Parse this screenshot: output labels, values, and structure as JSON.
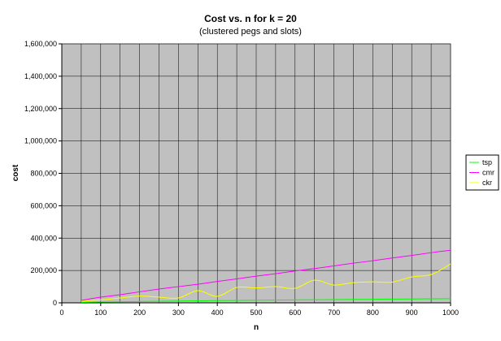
{
  "chart_data": {
    "type": "line",
    "title": "Cost vs. n for k = 20",
    "subtitle": "(clustered pegs and slots)",
    "xlabel": "n",
    "ylabel": "cost",
    "xlim": [
      0,
      1000
    ],
    "ylim": [
      0,
      1600000
    ],
    "x_ticks": [
      0,
      100,
      200,
      300,
      400,
      500,
      600,
      700,
      800,
      900,
      1000
    ],
    "x_tick_labels": [
      "0",
      "100",
      "200",
      "300",
      "400",
      "500",
      "600",
      "700",
      "800",
      "900",
      "1000"
    ],
    "y_ticks": [
      0,
      200000,
      400000,
      600000,
      800000,
      1000000,
      1200000,
      1400000,
      1600000
    ],
    "y_tick_labels": [
      "0",
      "200,000",
      "400,000",
      "600,000",
      "800,000",
      "1,000,000",
      "1,200,000",
      "1,400,000",
      "1,600,000"
    ],
    "grid": true,
    "legend_position": "right",
    "plot_background": "#c0c0c0",
    "x": [
      50,
      100,
      150,
      200,
      250,
      300,
      350,
      400,
      450,
      500,
      550,
      600,
      650,
      700,
      750,
      800,
      850,
      900,
      950,
      1000
    ],
    "series": [
      {
        "name": "tsp",
        "color": "#00ff00",
        "values": [
          3000,
          5000,
          6500,
          8000,
          9500,
          11000,
          12500,
          14000,
          15000,
          16000,
          17000,
          18000,
          19000,
          20000,
          21000,
          22000,
          23000,
          24000,
          25000,
          26000
        ]
      },
      {
        "name": "cmr",
        "color": "#ff00ff",
        "values": [
          15000,
          35000,
          50000,
          68000,
          85000,
          100000,
          115000,
          132000,
          148000,
          165000,
          180000,
          197000,
          212000,
          228000,
          245000,
          260000,
          277000,
          293000,
          310000,
          325000
        ]
      },
      {
        "name": "ckr",
        "color": "#ffff00",
        "values": [
          10000,
          18000,
          30000,
          42000,
          35000,
          30000,
          75000,
          40000,
          95000,
          92000,
          100000,
          90000,
          140000,
          110000,
          125000,
          130000,
          128000,
          160000,
          175000,
          240000
        ]
      }
    ]
  }
}
